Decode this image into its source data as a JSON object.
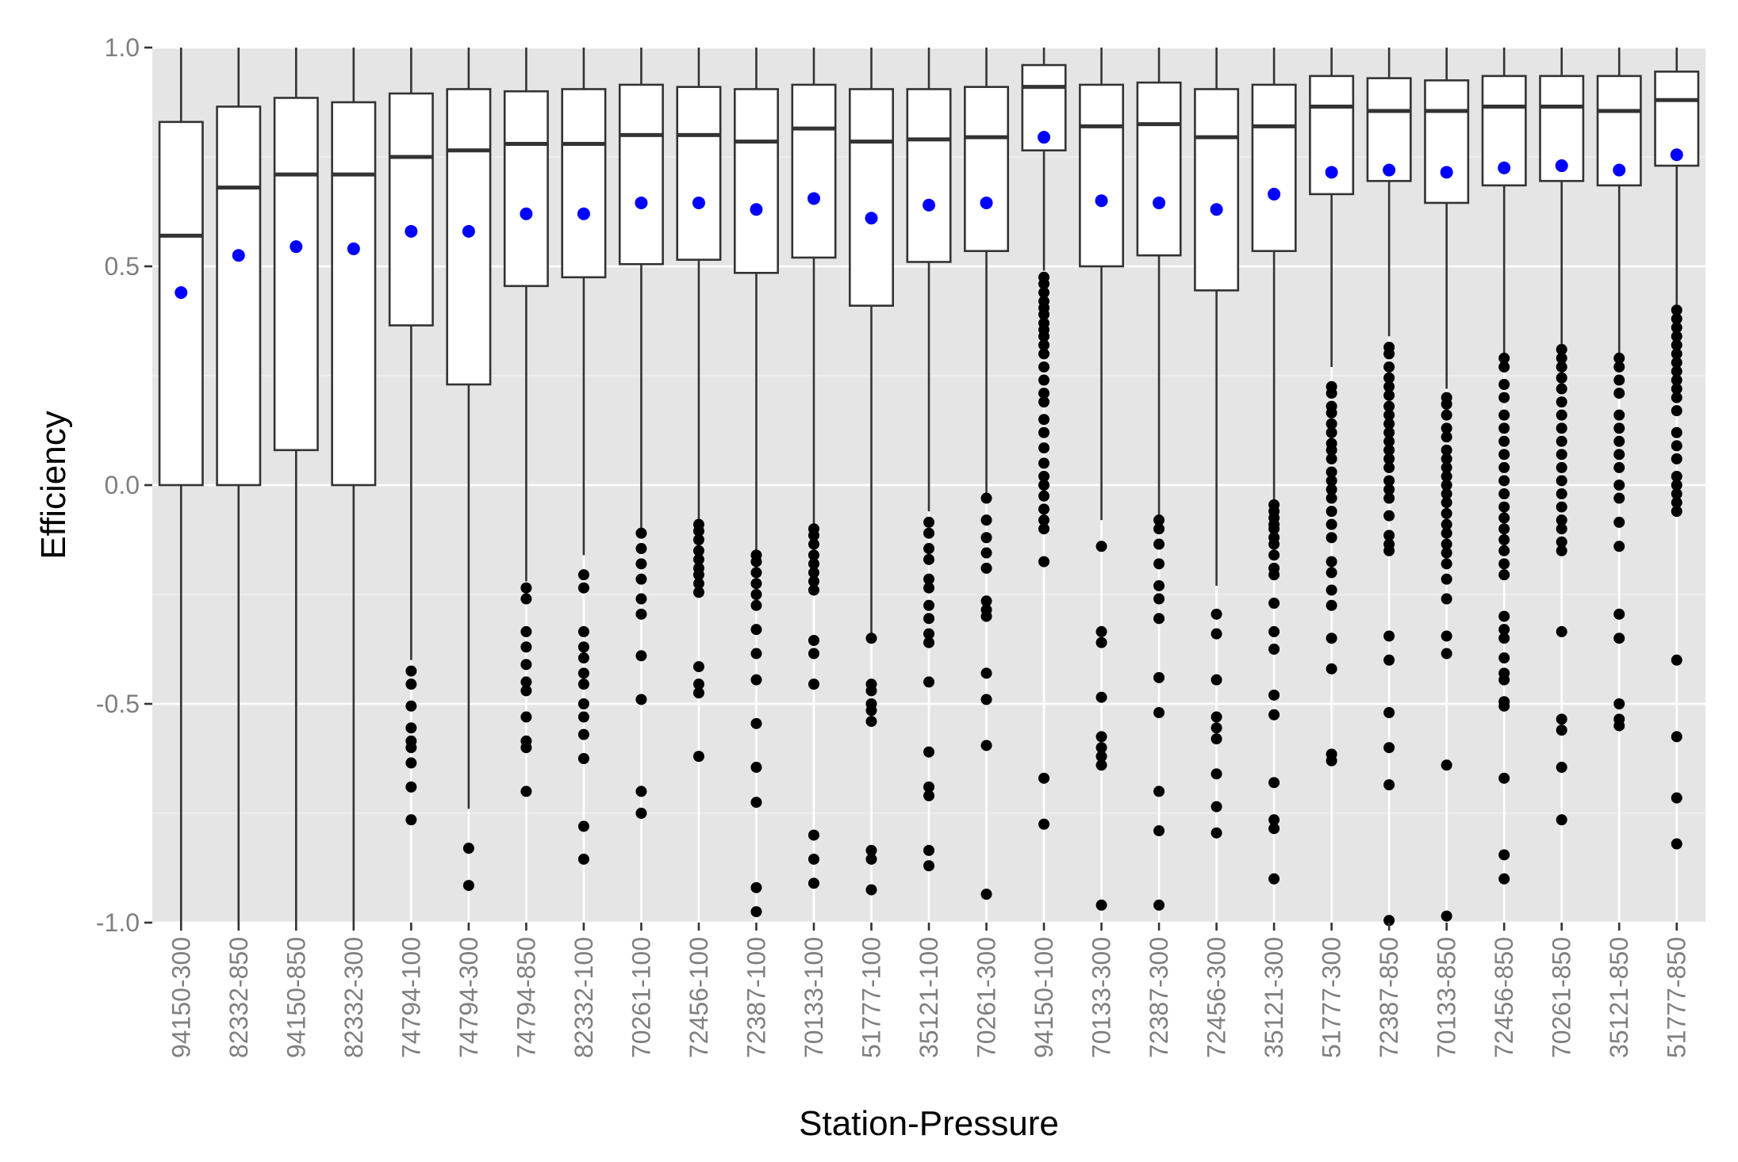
{
  "chart_data": {
    "type": "boxplot",
    "title": "",
    "xlabel": "Station-Pressure",
    "ylabel": "Efficiency",
    "ylim": [
      -1.0,
      1.0
    ],
    "y_ticks": [
      "-1.0",
      "-0.5",
      "0.0",
      "0.5",
      "1.0"
    ],
    "y_tick_values": [
      -1.0,
      -0.5,
      0.0,
      0.5,
      1.0
    ],
    "grid": true,
    "legend": "none",
    "colors": {
      "panel": "#e5e5e5",
      "grid": "#ffffff",
      "box_fill": "#ffffff",
      "box_line": "#333333",
      "outlier": "#000000",
      "mean": "#0000ff",
      "tick_label": "#7f7f7f"
    },
    "categories": [
      "94150-300",
      "82332-850",
      "94150-850",
      "82332-300",
      "74794-100",
      "74794-300",
      "74794-850",
      "82332-100",
      "70261-100",
      "72456-100",
      "72387-100",
      "70133-100",
      "51777-100",
      "35121-100",
      "70261-300",
      "94150-100",
      "70133-300",
      "72387-300",
      "72456-300",
      "35121-300",
      "51777-300",
      "72387-850",
      "70133-850",
      "72456-850",
      "70261-850",
      "35121-850",
      "51777-850"
    ],
    "boxes": [
      {
        "q1": 0.0,
        "median": 0.57,
        "q3": 0.83,
        "whisker_low": -1.0,
        "whisker_high": 1.0,
        "mean": 0.44,
        "outliers": []
      },
      {
        "q1": 0.0,
        "median": 0.68,
        "q3": 0.865,
        "whisker_low": -1.0,
        "whisker_high": 1.0,
        "mean": 0.525,
        "outliers": []
      },
      {
        "q1": 0.08,
        "median": 0.71,
        "q3": 0.885,
        "whisker_low": -1.0,
        "whisker_high": 1.0,
        "mean": 0.545,
        "outliers": []
      },
      {
        "q1": 0.0,
        "median": 0.71,
        "q3": 0.875,
        "whisker_low": -1.0,
        "whisker_high": 1.0,
        "mean": 0.54,
        "outliers": []
      },
      {
        "q1": 0.365,
        "median": 0.75,
        "q3": 0.895,
        "whisker_low": -0.4,
        "whisker_high": 1.0,
        "mean": 0.58,
        "outliers": [
          -0.425,
          -0.455,
          -0.505,
          -0.555,
          -0.585,
          -0.6,
          -0.635,
          -0.69,
          -0.765
        ]
      },
      {
        "q1": 0.23,
        "median": 0.765,
        "q3": 0.905,
        "whisker_low": -0.74,
        "whisker_high": 1.0,
        "mean": 0.58,
        "outliers": [
          -0.83,
          -0.915
        ]
      },
      {
        "q1": 0.455,
        "median": 0.78,
        "q3": 0.9,
        "whisker_low": -0.22,
        "whisker_high": 1.0,
        "mean": 0.62,
        "outliers": [
          -0.235,
          -0.26,
          -0.335,
          -0.37,
          -0.41,
          -0.45,
          -0.47,
          -0.53,
          -0.585,
          -0.6,
          -0.7
        ]
      },
      {
        "q1": 0.475,
        "median": 0.78,
        "q3": 0.905,
        "whisker_low": -0.16,
        "whisker_high": 1.0,
        "mean": 0.62,
        "outliers": [
          -0.205,
          -0.235,
          -0.335,
          -0.37,
          -0.395,
          -0.43,
          -0.455,
          -0.5,
          -0.53,
          -0.57,
          -0.625,
          -0.78,
          -0.855
        ]
      },
      {
        "q1": 0.505,
        "median": 0.8,
        "q3": 0.915,
        "whisker_low": -0.1,
        "whisker_high": 1.0,
        "mean": 0.645,
        "outliers": [
          -0.11,
          -0.145,
          -0.18,
          -0.215,
          -0.26,
          -0.295,
          -0.39,
          -0.49,
          -0.7,
          -0.75
        ]
      },
      {
        "q1": 0.515,
        "median": 0.8,
        "q3": 0.91,
        "whisker_low": -0.08,
        "whisker_high": 1.0,
        "mean": 0.645,
        "outliers": [
          -0.09,
          -0.105,
          -0.125,
          -0.15,
          -0.17,
          -0.19,
          -0.205,
          -0.225,
          -0.245,
          -0.415,
          -0.455,
          -0.475,
          -0.62
        ]
      },
      {
        "q1": 0.485,
        "median": 0.785,
        "q3": 0.905,
        "whisker_low": -0.15,
        "whisker_high": 1.0,
        "mean": 0.63,
        "outliers": [
          -0.16,
          -0.175,
          -0.2,
          -0.225,
          -0.25,
          -0.275,
          -0.33,
          -0.385,
          -0.445,
          -0.545,
          -0.645,
          -0.725,
          -0.92,
          -0.975
        ]
      },
      {
        "q1": 0.52,
        "median": 0.815,
        "q3": 0.915,
        "whisker_low": -0.09,
        "whisker_high": 1.0,
        "mean": 0.655,
        "outliers": [
          -0.1,
          -0.115,
          -0.135,
          -0.16,
          -0.18,
          -0.2,
          -0.22,
          -0.24,
          -0.355,
          -0.385,
          -0.455,
          -0.8,
          -0.855,
          -0.91
        ]
      },
      {
        "q1": 0.41,
        "median": 0.785,
        "q3": 0.905,
        "whisker_low": -0.34,
        "whisker_high": 1.0,
        "mean": 0.61,
        "outliers": [
          -0.35,
          -0.455,
          -0.47,
          -0.5,
          -0.515,
          -0.54,
          -0.835,
          -0.855,
          -0.925
        ]
      },
      {
        "q1": 0.51,
        "median": 0.79,
        "q3": 0.905,
        "whisker_low": -0.06,
        "whisker_high": 1.0,
        "mean": 0.64,
        "outliers": [
          -0.085,
          -0.11,
          -0.145,
          -0.17,
          -0.215,
          -0.235,
          -0.275,
          -0.305,
          -0.34,
          -0.36,
          -0.45,
          -0.61,
          -0.69,
          -0.71,
          -0.835,
          -0.87
        ]
      },
      {
        "q1": 0.535,
        "median": 0.795,
        "q3": 0.91,
        "whisker_low": -0.02,
        "whisker_high": 1.0,
        "mean": 0.645,
        "outliers": [
          -0.03,
          -0.08,
          -0.12,
          -0.155,
          -0.19,
          -0.265,
          -0.285,
          -0.3,
          -0.43,
          -0.49,
          -0.595,
          -0.935
        ]
      },
      {
        "q1": 0.765,
        "median": 0.91,
        "q3": 0.96,
        "whisker_low": 0.49,
        "whisker_high": 1.0,
        "mean": 0.795,
        "outliers": [
          0.475,
          0.46,
          0.44,
          0.42,
          0.405,
          0.39,
          0.37,
          0.355,
          0.34,
          0.32,
          0.3,
          0.27,
          0.24,
          0.21,
          0.19,
          0.15,
          0.12,
          0.085,
          0.05,
          0.02,
          0.0,
          -0.025,
          -0.055,
          -0.08,
          -0.1,
          -0.175,
          -0.67,
          -0.775
        ]
      },
      {
        "q1": 0.5,
        "median": 0.82,
        "q3": 0.915,
        "whisker_low": -0.08,
        "whisker_high": 1.0,
        "mean": 0.65,
        "outliers": [
          -0.14,
          -0.335,
          -0.36,
          -0.485,
          -0.575,
          -0.6,
          -0.62,
          -0.64,
          -0.96
        ]
      },
      {
        "q1": 0.525,
        "median": 0.825,
        "q3": 0.92,
        "whisker_low": -0.07,
        "whisker_high": 1.0,
        "mean": 0.645,
        "outliers": [
          -0.08,
          -0.1,
          -0.135,
          -0.18,
          -0.23,
          -0.26,
          -0.305,
          -0.44,
          -0.52,
          -0.7,
          -0.79,
          -0.96
        ]
      },
      {
        "q1": 0.445,
        "median": 0.795,
        "q3": 0.905,
        "whisker_low": -0.23,
        "whisker_high": 1.0,
        "mean": 0.63,
        "outliers": [
          -0.295,
          -0.34,
          -0.445,
          -0.53,
          -0.555,
          -0.58,
          -0.66,
          -0.735,
          -0.795
        ]
      },
      {
        "q1": 0.535,
        "median": 0.82,
        "q3": 0.915,
        "whisker_low": -0.04,
        "whisker_high": 1.0,
        "mean": 0.665,
        "outliers": [
          -0.045,
          -0.06,
          -0.075,
          -0.09,
          -0.1,
          -0.12,
          -0.135,
          -0.16,
          -0.19,
          -0.205,
          -0.27,
          -0.335,
          -0.375,
          -0.48,
          -0.525,
          -0.68,
          -0.765,
          -0.785,
          -0.9
        ]
      },
      {
        "q1": 0.665,
        "median": 0.865,
        "q3": 0.935,
        "whisker_low": 0.27,
        "whisker_high": 1.0,
        "mean": 0.715,
        "outliers": [
          0.225,
          0.21,
          0.18,
          0.165,
          0.14,
          0.12,
          0.095,
          0.08,
          0.06,
          0.03,
          0.01,
          -0.01,
          -0.03,
          -0.06,
          -0.09,
          -0.12,
          -0.175,
          -0.2,
          -0.24,
          -0.275,
          -0.35,
          -0.42,
          -0.615,
          -0.63
        ]
      },
      {
        "q1": 0.695,
        "median": 0.855,
        "q3": 0.93,
        "whisker_low": 0.34,
        "whisker_high": 1.0,
        "mean": 0.72,
        "outliers": [
          0.315,
          0.3,
          0.27,
          0.245,
          0.225,
          0.205,
          0.18,
          0.16,
          0.14,
          0.12,
          0.1,
          0.08,
          0.06,
          0.04,
          0.01,
          -0.01,
          -0.03,
          -0.07,
          -0.115,
          -0.135,
          -0.15,
          -0.345,
          -0.4,
          -0.52,
          -0.6,
          -0.685,
          -0.995
        ]
      },
      {
        "q1": 0.645,
        "median": 0.855,
        "q3": 0.925,
        "whisker_low": 0.22,
        "whisker_high": 1.0,
        "mean": 0.715,
        "outliers": [
          0.2,
          0.185,
          0.16,
          0.13,
          0.11,
          0.08,
          0.06,
          0.04,
          0.02,
          0.0,
          -0.02,
          -0.04,
          -0.065,
          -0.09,
          -0.11,
          -0.135,
          -0.155,
          -0.18,
          -0.215,
          -0.26,
          -0.345,
          -0.385,
          -0.64,
          -0.985
        ]
      },
      {
        "q1": 0.685,
        "median": 0.865,
        "q3": 0.935,
        "whisker_low": 0.3,
        "whisker_high": 1.0,
        "mean": 0.725,
        "outliers": [
          0.29,
          0.27,
          0.23,
          0.2,
          0.16,
          0.13,
          0.1,
          0.07,
          0.04,
          0.01,
          -0.02,
          -0.05,
          -0.075,
          -0.1,
          -0.125,
          -0.15,
          -0.18,
          -0.205,
          -0.3,
          -0.33,
          -0.35,
          -0.395,
          -0.43,
          -0.445,
          -0.495,
          -0.505,
          -0.67,
          -0.845,
          -0.9
        ]
      },
      {
        "q1": 0.695,
        "median": 0.865,
        "q3": 0.935,
        "whisker_low": 0.32,
        "whisker_high": 1.0,
        "mean": 0.73,
        "outliers": [
          0.31,
          0.29,
          0.27,
          0.245,
          0.22,
          0.19,
          0.16,
          0.13,
          0.1,
          0.07,
          0.04,
          0.01,
          -0.02,
          -0.05,
          -0.08,
          -0.1,
          -0.13,
          -0.15,
          -0.335,
          -0.535,
          -0.56,
          -0.645,
          -0.765
        ]
      },
      {
        "q1": 0.685,
        "median": 0.855,
        "q3": 0.935,
        "whisker_low": 0.3,
        "whisker_high": 1.0,
        "mean": 0.72,
        "outliers": [
          0.29,
          0.27,
          0.24,
          0.21,
          0.16,
          0.13,
          0.1,
          0.07,
          0.04,
          0.0,
          -0.03,
          -0.085,
          -0.14,
          -0.295,
          -0.35,
          -0.5,
          -0.535,
          -0.55
        ]
      },
      {
        "q1": 0.73,
        "median": 0.88,
        "q3": 0.945,
        "whisker_low": 0.41,
        "whisker_high": 1.0,
        "mean": 0.755,
        "outliers": [
          0.4,
          0.38,
          0.36,
          0.34,
          0.32,
          0.3,
          0.28,
          0.26,
          0.24,
          0.22,
          0.2,
          0.17,
          0.12,
          0.09,
          0.06,
          0.02,
          0.0,
          -0.02,
          -0.04,
          -0.06,
          -0.4,
          -0.575,
          -0.715,
          -0.82
        ]
      }
    ]
  }
}
